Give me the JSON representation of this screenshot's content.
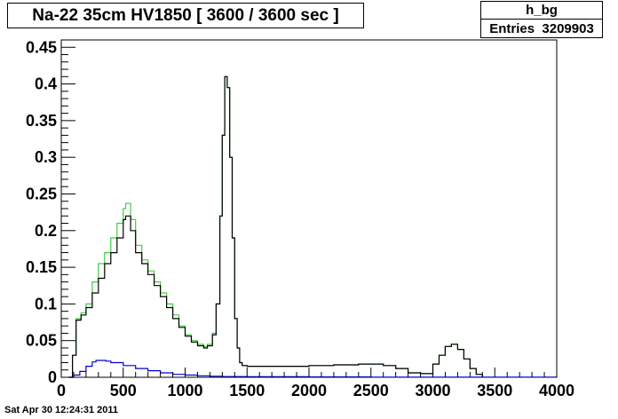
{
  "title": "Na-22 35cm HV1850 [ 3600 / 3600 sec ]",
  "stats": {
    "name": "h_bg",
    "entries_label": "Entries",
    "entries_value": "3209903"
  },
  "timestamp": "Sat Apr 30 12:24:31 2011",
  "chart_data": {
    "type": "line",
    "title": "Na-22 35cm HV1850 [ 3600 / 3600 sec ]",
    "xlabel": "",
    "ylabel": "",
    "xlim": [
      0,
      4000
    ],
    "ylim": [
      0,
      0.46
    ],
    "grid": false,
    "x_ticks": [
      0,
      500,
      1000,
      1500,
      2000,
      2500,
      3000,
      3500,
      4000
    ],
    "x_tick_labels": [
      "0",
      "500",
      "1000",
      "1500",
      "2000",
      "2500",
      "3000",
      "3500",
      "4000"
    ],
    "y_ticks": [
      0,
      0.05,
      0.1,
      0.15,
      0.2,
      0.25,
      0.3,
      0.35,
      0.4,
      0.45
    ],
    "y_tick_labels": [
      "0",
      "0.05",
      "0.1",
      "0.15",
      "0.2",
      "0.25",
      "0.3",
      "0.35",
      "0.4",
      "0.45"
    ],
    "series": [
      {
        "color": "#44cc44",
        "x": [
          60,
          90,
          120,
          160,
          200,
          250,
          300,
          350,
          400,
          450,
          500,
          520,
          560,
          600,
          650,
          700,
          750,
          800,
          850,
          900,
          950,
          1000,
          1050,
          1100,
          1150,
          1180,
          1220,
          1250,
          1280,
          1300,
          1320,
          1340,
          1360,
          1380,
          1400,
          1420,
          1440,
          1460,
          1500,
          1600,
          1800,
          2000,
          2200,
          2400,
          2500,
          2600,
          2700,
          2800,
          2900,
          3000,
          3050,
          3100,
          3150,
          3200,
          3250,
          3300,
          3350,
          3400
        ],
        "y": [
          0.0,
          0.03,
          0.08,
          0.088,
          0.1,
          0.13,
          0.155,
          0.17,
          0.19,
          0.21,
          0.23,
          0.237,
          0.215,
          0.18,
          0.16,
          0.145,
          0.13,
          0.115,
          0.1,
          0.085,
          0.07,
          0.058,
          0.05,
          0.045,
          0.042,
          0.045,
          0.06,
          0.1,
          0.22,
          0.33,
          0.41,
          0.395,
          0.3,
          0.19,
          0.08,
          0.04,
          0.02,
          0.016,
          0.015,
          0.015,
          0.015,
          0.016,
          0.017,
          0.018,
          0.018,
          0.016,
          0.012,
          0.006,
          0.005,
          0.018,
          0.03,
          0.042,
          0.045,
          0.038,
          0.025,
          0.012,
          0.004,
          0.0
        ]
      },
      {
        "color": "#000000",
        "x": [
          60,
          90,
          120,
          160,
          200,
          250,
          300,
          350,
          400,
          450,
          500,
          520,
          560,
          600,
          650,
          700,
          750,
          800,
          850,
          900,
          950,
          1000,
          1050,
          1100,
          1150,
          1180,
          1220,
          1250,
          1280,
          1300,
          1320,
          1340,
          1360,
          1380,
          1400,
          1420,
          1440,
          1460,
          1500,
          1600,
          1800,
          2000,
          2200,
          2400,
          2500,
          2600,
          2700,
          2800,
          2900,
          3000,
          3050,
          3100,
          3150,
          3200,
          3250,
          3300,
          3350,
          3400
        ],
        "y": [
          0.0,
          0.03,
          0.078,
          0.085,
          0.095,
          0.115,
          0.135,
          0.155,
          0.17,
          0.19,
          0.215,
          0.22,
          0.2,
          0.17,
          0.155,
          0.14,
          0.125,
          0.11,
          0.095,
          0.08,
          0.068,
          0.056,
          0.048,
          0.043,
          0.04,
          0.043,
          0.058,
          0.1,
          0.22,
          0.33,
          0.41,
          0.395,
          0.3,
          0.19,
          0.08,
          0.04,
          0.02,
          0.016,
          0.015,
          0.015,
          0.015,
          0.016,
          0.017,
          0.018,
          0.018,
          0.016,
          0.012,
          0.006,
          0.005,
          0.018,
          0.03,
          0.042,
          0.045,
          0.038,
          0.025,
          0.012,
          0.004,
          0.0
        ]
      },
      {
        "color": "#0000cc",
        "x": [
          60,
          100,
          150,
          200,
          250,
          280,
          320,
          360,
          400,
          500,
          600,
          700,
          800,
          900,
          1000,
          1100,
          1200,
          1300,
          1500,
          2000,
          2500,
          3000,
          3500,
          4000
        ],
        "y": [
          0.0,
          0.003,
          0.008,
          0.015,
          0.021,
          0.023,
          0.023,
          0.022,
          0.02,
          0.016,
          0.012,
          0.009,
          0.006,
          0.004,
          0.003,
          0.002,
          0.0015,
          0.001,
          0.0008,
          0.0005,
          0.0003,
          0.0002,
          0.0001,
          0.0
        ]
      }
    ]
  }
}
